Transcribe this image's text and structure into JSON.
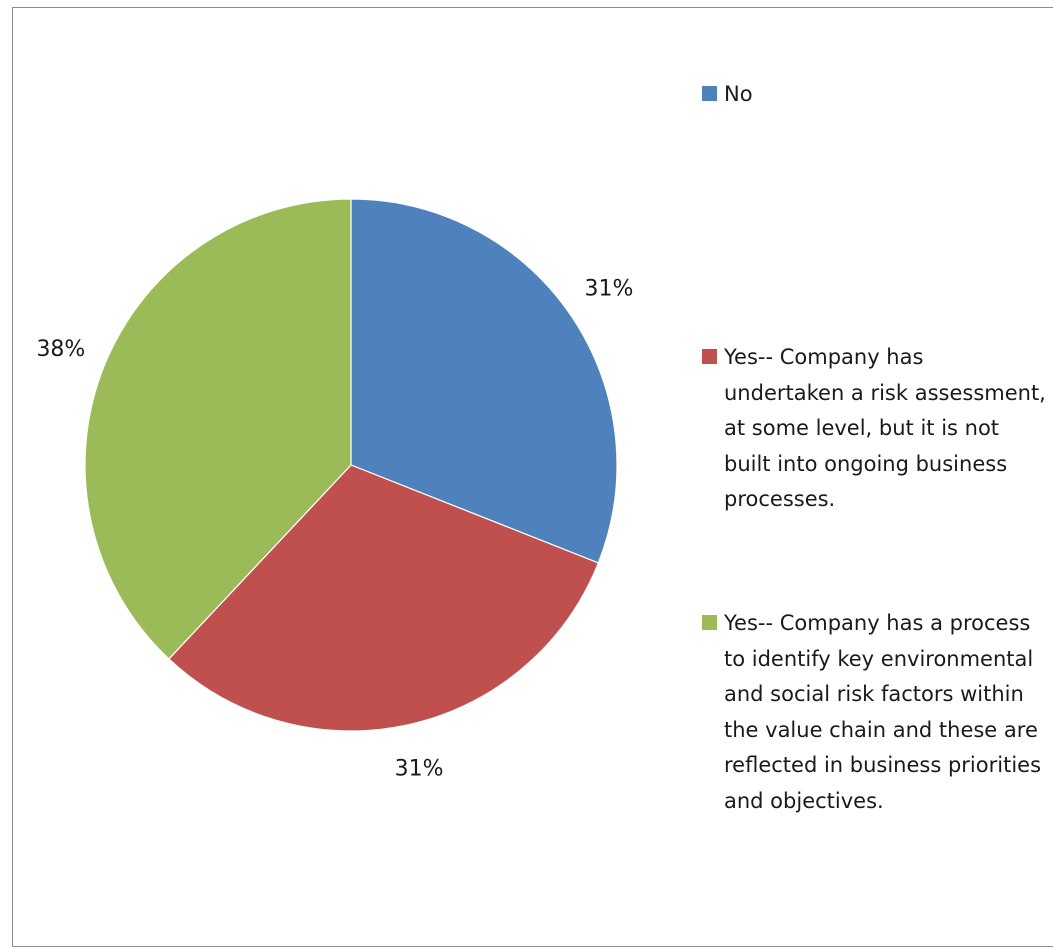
{
  "chart_data": {
    "type": "pie",
    "title": "",
    "slices": [
      {
        "label": "No",
        "value": 31,
        "display": "31%",
        "color": "#4f81bd"
      },
      {
        "label": "Yes-- Company has undertaken a risk assessment, at some level, but it is not built into ongoing business processes.",
        "value": 31,
        "display": "31%",
        "color": "#c0504d"
      },
      {
        "label": "Yes-- Company has a process to identify key environmental and social risk factors within the value chain and these are reflected in business priorities and objectives.",
        "value": 38,
        "display": "38%",
        "color": "#9bbb59"
      }
    ],
    "legend_position": "right"
  }
}
